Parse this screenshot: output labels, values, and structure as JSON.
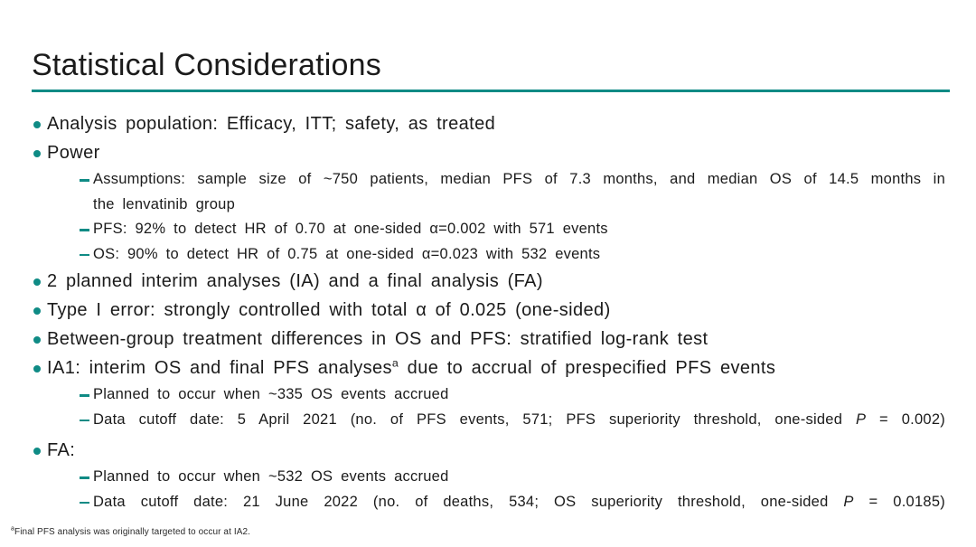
{
  "theme": {
    "accent": "#0F8B85",
    "text": "#1B1B1B",
    "footnote_text": "#2A2A2A",
    "background": "#FFFFFF"
  },
  "slide": {
    "title": "Statistical Considerations"
  },
  "content": {
    "items": [
      {
        "level": 1,
        "text": "Analysis population: Efficacy, ITT; safety, as treated"
      },
      {
        "level": 1,
        "text": "Power"
      },
      {
        "level": 2,
        "text": "Assumptions: sample size of ~750 patients, median PFS of 7.3 months, and median OS of 14.5 months in",
        "text_line2": "the lenvatinib group"
      },
      {
        "level": 2,
        "text": "PFS: 92% to detect HR of 0.70 at one-sided α=0.002 with 571 events"
      },
      {
        "level": 2,
        "text": "OS: 90% to detect HR of 0.75 at one-sided α=0.023 with 532 events"
      },
      {
        "level": 1,
        "text": "2 planned interim analyses (IA) and a final analysis (FA)"
      },
      {
        "level": 1,
        "text": "Type I error: strongly controlled with total α of 0.025 (one-sided)"
      },
      {
        "level": 1,
        "text": "Between-group treatment differences in OS and PFS: stratified log-rank test"
      },
      {
        "level": 1,
        "text_before_sup": "IA1: interim OS and final PFS analyses",
        "sup": "a",
        "text_after_sup": " due to accrual of prespecified PFS events"
      },
      {
        "level": 2,
        "text": "Planned to occur when ~335 OS events accrued"
      },
      {
        "level": 2,
        "text_before_italic": "Data cutoff date: 5 April 2021 (no. of PFS events, 571; PFS superiority threshold, one-sided ",
        "italic": "P",
        "text_after_italic": " = 0.002)"
      },
      {
        "level": 1,
        "text": "FA:"
      },
      {
        "level": 2,
        "text": "Planned to occur when ~532 OS events accrued"
      },
      {
        "level": 2,
        "text_before_italic": "Data cutoff date: 21 June 2022 (no. of deaths, 534; OS superiority threshold, one-sided ",
        "italic": "P",
        "text_after_italic": " = 0.0185)"
      }
    ]
  },
  "footnote": {
    "marker": "a",
    "text": "Final PFS analysis was originally targeted to occur at IA2."
  }
}
